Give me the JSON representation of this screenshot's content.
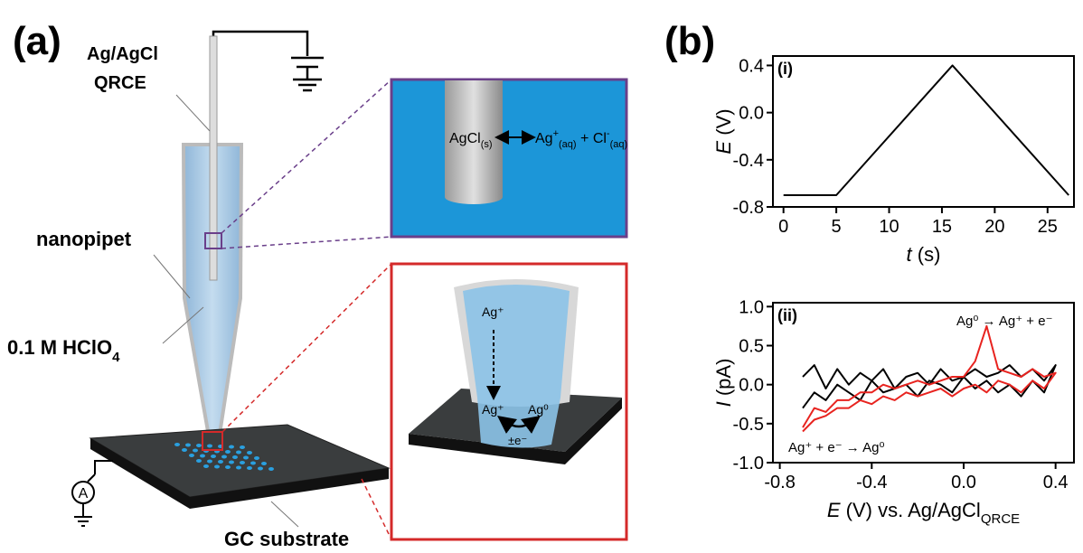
{
  "panel_a": {
    "label": "(a)",
    "electrode": [
      "Ag/AgCl",
      "QRCE"
    ],
    "pipet": "nanopipet",
    "electrolyte": {
      "text": "0.1 M HClO",
      "subscript": "4"
    },
    "substrate": "GC substrate",
    "ammeter": "A",
    "inset_top": {
      "reactant": "AgCl",
      "reactant_sub": "(s)",
      "ion": "Ag",
      "ion_sup": "+",
      "ion_sub": "(aq)",
      "plus": " + Cl",
      "anion_sup": "-",
      "anion_sub": "(aq)"
    },
    "inset_bottom": {
      "ion_top": "Ag⁺",
      "ion_bottom": "Ag⁺",
      "metal": "Ag⁰",
      "electron": "±e⁻"
    }
  },
  "panel_b": {
    "label": "(b)"
  },
  "chart_data": [
    {
      "type": "line",
      "panel": "(i)",
      "x": [
        0,
        5,
        16,
        27
      ],
      "series": [
        {
          "color": "#000000",
          "values": [
            -0.7,
            -0.7,
            0.4,
            -0.7
          ]
        }
      ],
      "x_label": {
        "symbol": "t",
        "text": " (s)"
      },
      "y_label": {
        "symbol": "E",
        "text": " (V)"
      },
      "xlim": [
        -1,
        27.5
      ],
      "ylim": [
        -0.8,
        0.48
      ],
      "xticks": [
        0,
        5,
        10,
        15,
        20,
        25
      ],
      "yticks": [
        0.4,
        {
          "value": 0,
          "label": "0.0"
        },
        -0.4,
        -0.8
      ]
    },
    {
      "type": "line",
      "panel": "(ii)",
      "x": [
        -0.7,
        -0.65,
        -0.6,
        -0.55,
        -0.5,
        -0.45,
        -0.4,
        -0.35,
        -0.3,
        -0.25,
        -0.2,
        -0.15,
        -0.1,
        -0.05,
        0,
        0.05,
        0.1,
        0.15,
        0.2,
        0.25,
        0.3,
        0.35,
        0.4,
        0.35,
        0.3,
        0.25,
        0.2,
        0.15,
        0.1,
        0.05,
        0,
        -0.05,
        -0.1,
        -0.15,
        -0.2,
        -0.25,
        -0.3,
        -0.35,
        -0.4,
        -0.45,
        -0.5,
        -0.55,
        -0.6,
        -0.65,
        -0.7
      ],
      "series": [
        {
          "color": "#000000",
          "values": [
            0.1,
            0.25,
            -0.05,
            0.2,
            0.0,
            0.15,
            0.05,
            0.2,
            -0.05,
            0.1,
            0.15,
            0.0,
            0.2,
            0.05,
            0.1,
            0.2,
            0.1,
            0.15,
            0.25,
            0.1,
            0.2,
            0.05,
            0.25,
            -0.1,
            0.05,
            -0.15,
            0.0,
            -0.1,
            0.05,
            -0.05,
            0.1,
            -0.1,
            0.0,
            0.05,
            -0.15,
            0.0,
            -0.05,
            -0.1,
            0.05,
            -0.2,
            -0.1,
            0.0,
            -0.2,
            -0.1,
            -0.3
          ]
        },
        {
          "color": "#e8231f",
          "values": [
            -0.55,
            -0.3,
            -0.35,
            -0.2,
            -0.2,
            -0.1,
            -0.1,
            0.0,
            -0.05,
            0.0,
            0.05,
            0.0,
            0.05,
            0.1,
            0.1,
            0.3,
            0.75,
            0.2,
            0.15,
            0.1,
            0.2,
            0.1,
            0.15,
            -0.05,
            0.05,
            -0.1,
            0.0,
            0.05,
            -0.1,
            0.0,
            -0.05,
            -0.15,
            -0.05,
            -0.1,
            -0.15,
            -0.1,
            -0.2,
            -0.15,
            -0.25,
            -0.2,
            -0.3,
            -0.3,
            -0.4,
            -0.45,
            -0.6
          ]
        }
      ],
      "annotations": [
        "Ag⁰ → Ag⁺ + e⁻",
        "Ag⁺ + e⁻ → Ag⁰"
      ],
      "x_label": {
        "symbol": "E",
        "text": " (V) vs. Ag/AgCl",
        "subscript": "QRCE"
      },
      "y_label": {
        "symbol": "I",
        "text": " (pA)"
      },
      "xlim": [
        -0.83,
        0.48
      ],
      "ylim": [
        -1.0,
        1.05
      ],
      "xticks": [
        -0.8,
        -0.4,
        {
          "value": 0,
          "label": "0.0"
        },
        0.4
      ],
      "yticks": [
        {
          "value": 1,
          "label": "1.0"
        },
        0.5,
        {
          "value": 0,
          "label": "0.0"
        },
        -0.5,
        {
          "value": -1,
          "label": "-1.0"
        }
      ]
    }
  ]
}
